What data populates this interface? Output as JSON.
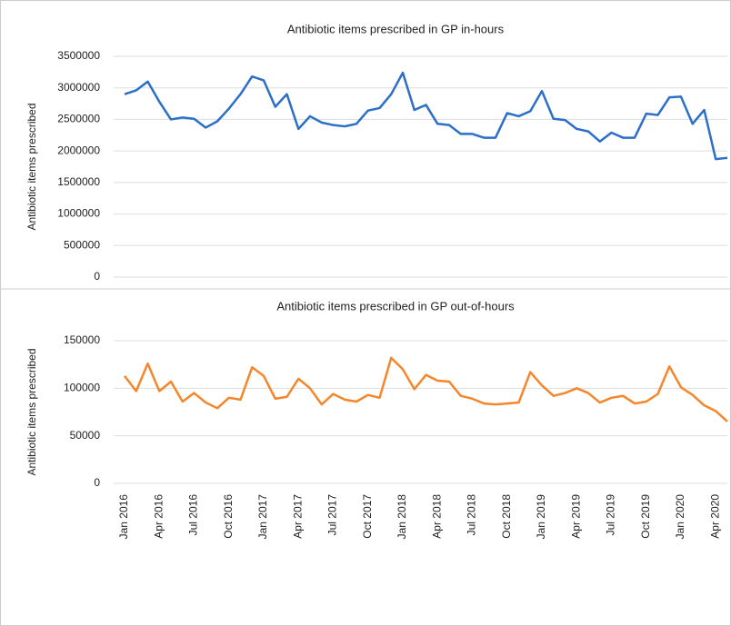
{
  "chart_data": [
    {
      "type": "line",
      "title": "Antibiotic items prescribed in GP in-hours",
      "y_label": "Antibiotic items prescribed",
      "series": [
        {
          "name": "GP in-hours",
          "color": "#2b6fc8",
          "values": [
            2900000,
            2960000,
            3100000,
            2780000,
            2500000,
            2530000,
            2510000,
            2370000,
            2470000,
            2670000,
            2900000,
            3180000,
            3120000,
            2700000,
            2900000,
            2350000,
            2550000,
            2450000,
            2410000,
            2390000,
            2430000,
            2640000,
            2680000,
            2900000,
            3240000,
            2650000,
            2730000,
            2430000,
            2410000,
            2270000,
            2270000,
            2210000,
            2210000,
            2600000,
            2550000,
            2630000,
            2950000,
            2510000,
            2490000,
            2350000,
            2310000,
            2150000,
            2290000,
            2210000,
            2210000,
            2590000,
            2570000,
            2850000,
            2860000,
            2430000,
            2650000,
            1870000,
            1890000
          ]
        }
      ],
      "ylim": [
        0,
        3500000
      ],
      "yticks": [
        0,
        500000,
        1000000,
        1500000,
        2000000,
        2500000,
        3000000,
        3500000
      ],
      "grid": true
    },
    {
      "type": "line",
      "title": "Antibiotic items prescribed in GP out-of-hours",
      "y_label": "Antibiotic items prescribed",
      "categories": [
        "Jan 2016",
        null,
        null,
        "Apr 2016",
        null,
        null,
        "Jul 2016",
        null,
        null,
        "Oct 2016",
        null,
        null,
        "Jan 2017",
        null,
        null,
        "Apr 2017",
        null,
        null,
        "Jul 2017",
        null,
        null,
        "Oct 2017",
        null,
        null,
        "Jan 2018",
        null,
        null,
        "Apr 2018",
        null,
        null,
        "Jul 2018",
        null,
        null,
        "Oct 2018",
        null,
        null,
        "Jan 2019",
        null,
        null,
        "Apr 2019",
        null,
        null,
        "Jul 2019",
        null,
        null,
        "Oct 2019",
        null,
        null,
        "Jan 2020",
        null,
        null,
        "Apr 2020",
        null
      ],
      "series": [
        {
          "name": "GP out-of-hours",
          "color": "#f5862b",
          "values": [
            113000,
            97000,
            126000,
            97000,
            107000,
            86000,
            95000,
            85000,
            79000,
            90000,
            88000,
            122000,
            113000,
            89000,
            91000,
            110000,
            100000,
            83000,
            94000,
            88000,
            86000,
            93000,
            90000,
            132000,
            120000,
            99000,
            114000,
            108000,
            107000,
            92000,
            89000,
            84000,
            83000,
            84000,
            85000,
            117000,
            103000,
            92000,
            95000,
            100000,
            95000,
            85000,
            90000,
            92000,
            84000,
            86000,
            94000,
            123000,
            101000,
            93000,
            82000,
            76000,
            65000
          ]
        }
      ],
      "ylim": [
        0,
        150000
      ],
      "yticks": [
        0,
        50000,
        100000,
        150000
      ],
      "grid": true
    }
  ]
}
